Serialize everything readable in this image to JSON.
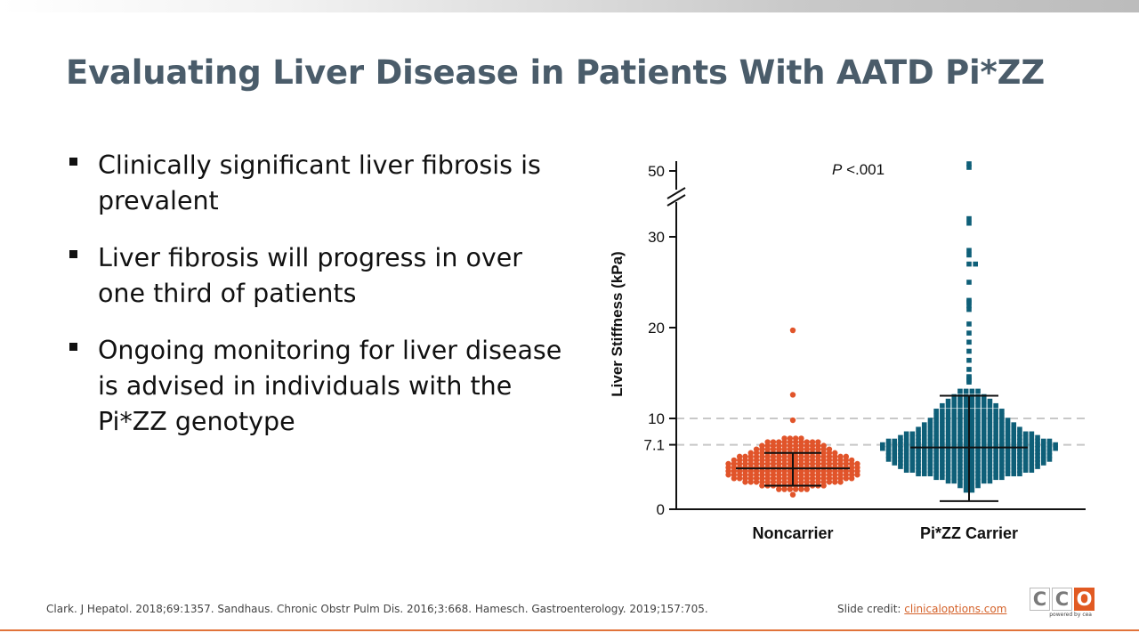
{
  "slide": {
    "title": "Evaluating Liver Disease in Patients With AATD Pi*ZZ",
    "bullets": [
      "Clinically significant liver fibrosis is prevalent",
      "Liver fibrosis will progress in over one third of patients",
      "Ongoing monitoring for liver disease is advised in individuals with the Pi*ZZ genotype"
    ],
    "references": "Clark. J Hepatol. 2018;69:1357. Sandhaus. Chronic Obstr Pulm Dis. 2016;3:668. Hamesch. Gastroenterology. 2019;157:705.",
    "credit_label": "Slide credit:",
    "credit_link": "clinicaloptions.com",
    "logo": {
      "letters": [
        "C",
        "C",
        "O"
      ],
      "tagline": "powered by cea"
    }
  },
  "colors": {
    "title": "#4a5c6a",
    "noncarrier": "#e1542a",
    "carrier": "#0e5f78",
    "accent": "#e1733a"
  },
  "chart_data": {
    "type": "scatter",
    "subtype": "dot-plot",
    "ylabel": "Liver Stiffness (kPa)",
    "ylim": [
      0,
      50
    ],
    "axis_break": [
      32,
      48
    ],
    "y_ticks": [
      "0",
      "7.1",
      "10",
      "20",
      "30",
      "50"
    ],
    "reference_lines": [
      7.1,
      10
    ],
    "annotation": {
      "italic": "P",
      "text": " <.001"
    },
    "categories": [
      "Noncarrier",
      "Pi*ZZ Carrier"
    ],
    "series": [
      {
        "name": "Noncarrier",
        "marker": "circle",
        "median": 4.5,
        "whisker_low": 2.6,
        "whisker_high": 6.2,
        "outliers": [
          19.7,
          12.6,
          9.8
        ],
        "bands": [
          [
            7.8,
            4
          ],
          [
            7.4,
            10
          ],
          [
            7.0,
            12
          ],
          [
            6.6,
            14
          ],
          [
            6.2,
            16
          ],
          [
            5.8,
            20
          ],
          [
            5.4,
            22
          ],
          [
            5.0,
            24
          ],
          [
            4.6,
            24
          ],
          [
            4.2,
            24
          ],
          [
            3.8,
            24
          ],
          [
            3.4,
            22
          ],
          [
            3.0,
            18
          ],
          [
            2.6,
            12
          ],
          [
            2.2,
            6
          ],
          [
            1.6,
            1
          ]
        ]
      },
      {
        "name": "Pi*ZZ Carrier",
        "marker": "square",
        "median": 6.8,
        "whisker_low": 0.9,
        "whisker_high": 12.5,
        "outliers": [
          52,
          51,
          32,
          31.5,
          28.5,
          28,
          27,
          27,
          25,
          23,
          22.8,
          22.4,
          22,
          20.4,
          19.4,
          18.4,
          17.4,
          16.4,
          15.4,
          14.6,
          14.5,
          14.2,
          14
        ],
        "bands": [
          [
            13.0,
            4
          ],
          [
            12.4,
            6
          ],
          [
            11.9,
            8
          ],
          [
            11.4,
            10
          ],
          [
            10.8,
            12
          ],
          [
            10.3,
            12
          ],
          [
            9.8,
            14
          ],
          [
            9.3,
            16
          ],
          [
            8.8,
            18
          ],
          [
            8.3,
            22
          ],
          [
            7.9,
            24
          ],
          [
            7.5,
            28
          ],
          [
            7.1,
            30
          ],
          [
            6.7,
            30
          ],
          [
            6.3,
            28
          ],
          [
            5.9,
            28
          ],
          [
            5.5,
            28
          ],
          [
            5.1,
            26
          ],
          [
            4.7,
            24
          ],
          [
            4.3,
            22
          ],
          [
            3.9,
            18
          ],
          [
            3.5,
            12
          ],
          [
            3.1,
            8
          ],
          [
            2.6,
            4
          ],
          [
            2.1,
            2
          ]
        ]
      }
    ]
  }
}
